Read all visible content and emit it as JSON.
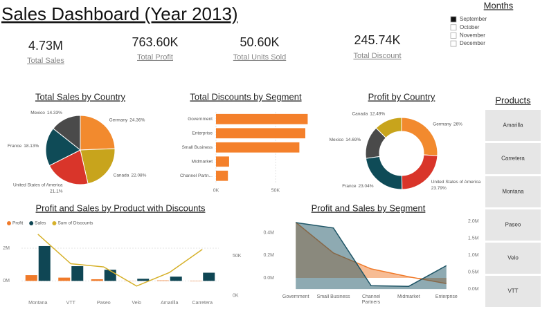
{
  "header": {
    "title": "Sales Dashboard (Year 2013)"
  },
  "kpis": [
    {
      "value": "4.73M",
      "label": "Total Sales"
    },
    {
      "value": "763.60K",
      "label": "Total Profit"
    },
    {
      "value": "50.60K",
      "label": "Total Units Sold"
    },
    {
      "value": "245.74K",
      "label": "Total Discount"
    }
  ],
  "months": {
    "title": "Months",
    "items": [
      {
        "label": "September",
        "checked": true
      },
      {
        "label": "October",
        "checked": false
      },
      {
        "label": "November",
        "checked": false
      },
      {
        "label": "December",
        "checked": false
      }
    ]
  },
  "products": {
    "title": "Products",
    "items": [
      "Amarilla",
      "Carretera",
      "Montana",
      "Paseo",
      "Velo",
      "VTT"
    ]
  },
  "chart_data": [
    {
      "type": "pie",
      "title": "Total Sales by Country",
      "categories": [
        "Germany",
        "Canada",
        "United States of America",
        "France",
        "Mexico"
      ],
      "values": [
        24.36,
        22.08,
        21.1,
        18.13,
        14.33
      ],
      "value_labels": [
        "24.36%",
        "22.08%",
        "21.1%",
        "18.13%",
        "14.33%"
      ],
      "colors": [
        "#F28A2E",
        "#C8A41C",
        "#D9352A",
        "#0F4B57",
        "#4A4A4A"
      ]
    },
    {
      "type": "bar",
      "orientation": "horizontal",
      "title": "Total Discounts by Segment",
      "categories": [
        "Government",
        "Enterprise",
        "Small Business",
        "Midmarket",
        "Channel Partn..."
      ],
      "values": [
        77000,
        75000,
        70000,
        11000,
        10000
      ],
      "color": "#F4802B",
      "xlim": [
        0,
        80000
      ],
      "xticks": [
        {
          "value": 0,
          "label": "0K"
        },
        {
          "value": 50000,
          "label": "50K"
        }
      ],
      "grid": true
    },
    {
      "type": "donut",
      "title": "Profit by Country",
      "categories": [
        "Germany",
        "United States of America",
        "France",
        "Mexico",
        "Canada"
      ],
      "values": [
        26,
        23.79,
        23.04,
        14.69,
        12.49
      ],
      "value_labels": [
        "26%",
        "23.79%",
        "23.04%",
        "14.69%",
        "12.49%"
      ],
      "colors": [
        "#F28A2E",
        "#D9352A",
        "#0F4B57",
        "#4A4A4A",
        "#C8A41C"
      ]
    },
    {
      "type": "combo",
      "title": "Profit and Sales by Product with Discounts",
      "categories": [
        "Montana",
        "VTT",
        "Paseo",
        "Velo",
        "Amarilla",
        "Carretera"
      ],
      "series": [
        {
          "name": "Profit",
          "kind": "bar",
          "color": "#F07A2A",
          "values": [
            350000,
            200000,
            100000,
            10000,
            30000,
            -20000
          ]
        },
        {
          "name": "Sales",
          "kind": "bar",
          "color": "#0F4654",
          "values": [
            2130000,
            900000,
            680000,
            130000,
            260000,
            500000
          ]
        },
        {
          "name": "Sum of Discounts",
          "kind": "line",
          "axis": "y2",
          "color": "#D6B12A",
          "values": [
            77000,
            40000,
            36000,
            12000,
            29000,
            58000
          ]
        }
      ],
      "ylim": [
        -1000000,
        3100000
      ],
      "yticks": [
        {
          "value": 0,
          "label": "0M"
        },
        {
          "value": 2000000,
          "label": "2M"
        }
      ],
      "y2lim": [
        -2000,
        82000
      ],
      "y2ticks": [
        {
          "value": 0,
          "label": "0K"
        },
        {
          "value": 50000,
          "label": "50K"
        }
      ],
      "grid": true,
      "legend": "top-left"
    },
    {
      "type": "area",
      "title": "Profit and Sales by Segment",
      "categories": [
        "Government",
        "Small Business",
        "Channel Partners",
        "Midmarket",
        "Enterprise"
      ],
      "series": [
        {
          "color": "#F07A2A",
          "values": [
            490000,
            220000,
            80000,
            10000,
            -50000
          ]
        },
        {
          "color": "#1E5566",
          "axis": "y2",
          "values": [
            1960000,
            1800000,
            100000,
            80000,
            690000
          ]
        }
      ],
      "ylim": [
        -140000,
        500000
      ],
      "yticks": [
        {
          "value": 0,
          "label": "0.0M"
        },
        {
          "value": 200000,
          "label": "0.2M"
        },
        {
          "value": 400000,
          "label": "0.4M"
        }
      ],
      "y2lim": [
        -140000,
        2000000
      ],
      "y2ticks": [
        {
          "value": 0,
          "label": "0.0M"
        },
        {
          "value": 500000,
          "label": "0.5M"
        },
        {
          "value": 1000000,
          "label": "1.0M"
        },
        {
          "value": 1500000,
          "label": "1.5M"
        },
        {
          "value": 2000000,
          "label": "2.0M"
        }
      ],
      "grid": false
    }
  ]
}
